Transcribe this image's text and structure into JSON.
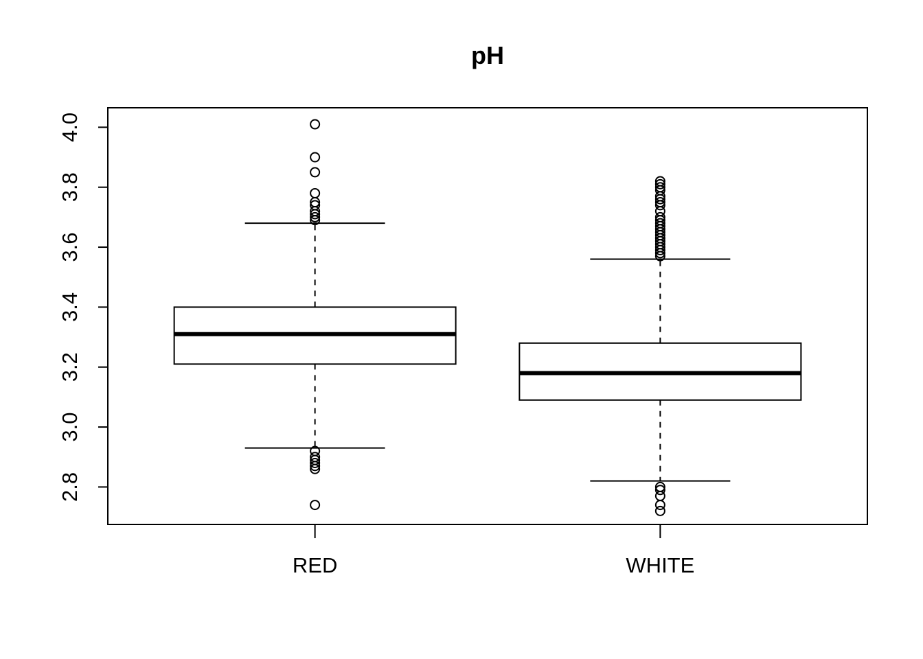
{
  "chart_data": {
    "type": "boxplot",
    "title": "pH",
    "xlabel": "",
    "ylabel": "",
    "ylim": [
      2.675,
      4.065
    ],
    "yticks": [
      2.8,
      3.0,
      3.2,
      3.4,
      3.6,
      3.8,
      4.0
    ],
    "ytick_labels": [
      "2.8",
      "3.0",
      "3.2",
      "3.4",
      "3.6",
      "3.8",
      "4.0"
    ],
    "categories": [
      "RED",
      "WHITE"
    ],
    "boxes": [
      {
        "name": "RED",
        "whisker_low": 2.93,
        "q1": 3.21,
        "median": 3.31,
        "q3": 3.4,
        "whisker_high": 3.68,
        "outliers": [
          4.01,
          3.9,
          3.85,
          3.78,
          3.75,
          3.74,
          3.72,
          3.71,
          3.7,
          3.69,
          2.92,
          2.9,
          2.89,
          2.88,
          2.87,
          2.86,
          2.74
        ]
      },
      {
        "name": "WHITE",
        "whisker_low": 2.82,
        "q1": 3.09,
        "median": 3.18,
        "q3": 3.28,
        "whisker_high": 3.56,
        "outliers": [
          3.82,
          3.81,
          3.8,
          3.79,
          3.77,
          3.76,
          3.75,
          3.74,
          3.72,
          3.7,
          3.69,
          3.68,
          3.67,
          3.66,
          3.65,
          3.64,
          3.63,
          3.62,
          3.61,
          3.6,
          3.59,
          3.58,
          3.57,
          2.8,
          2.79,
          2.77,
          2.74,
          2.72
        ]
      }
    ],
    "colors": {
      "line": "#000000",
      "background": "#ffffff"
    },
    "grid": false,
    "legend": "none"
  }
}
